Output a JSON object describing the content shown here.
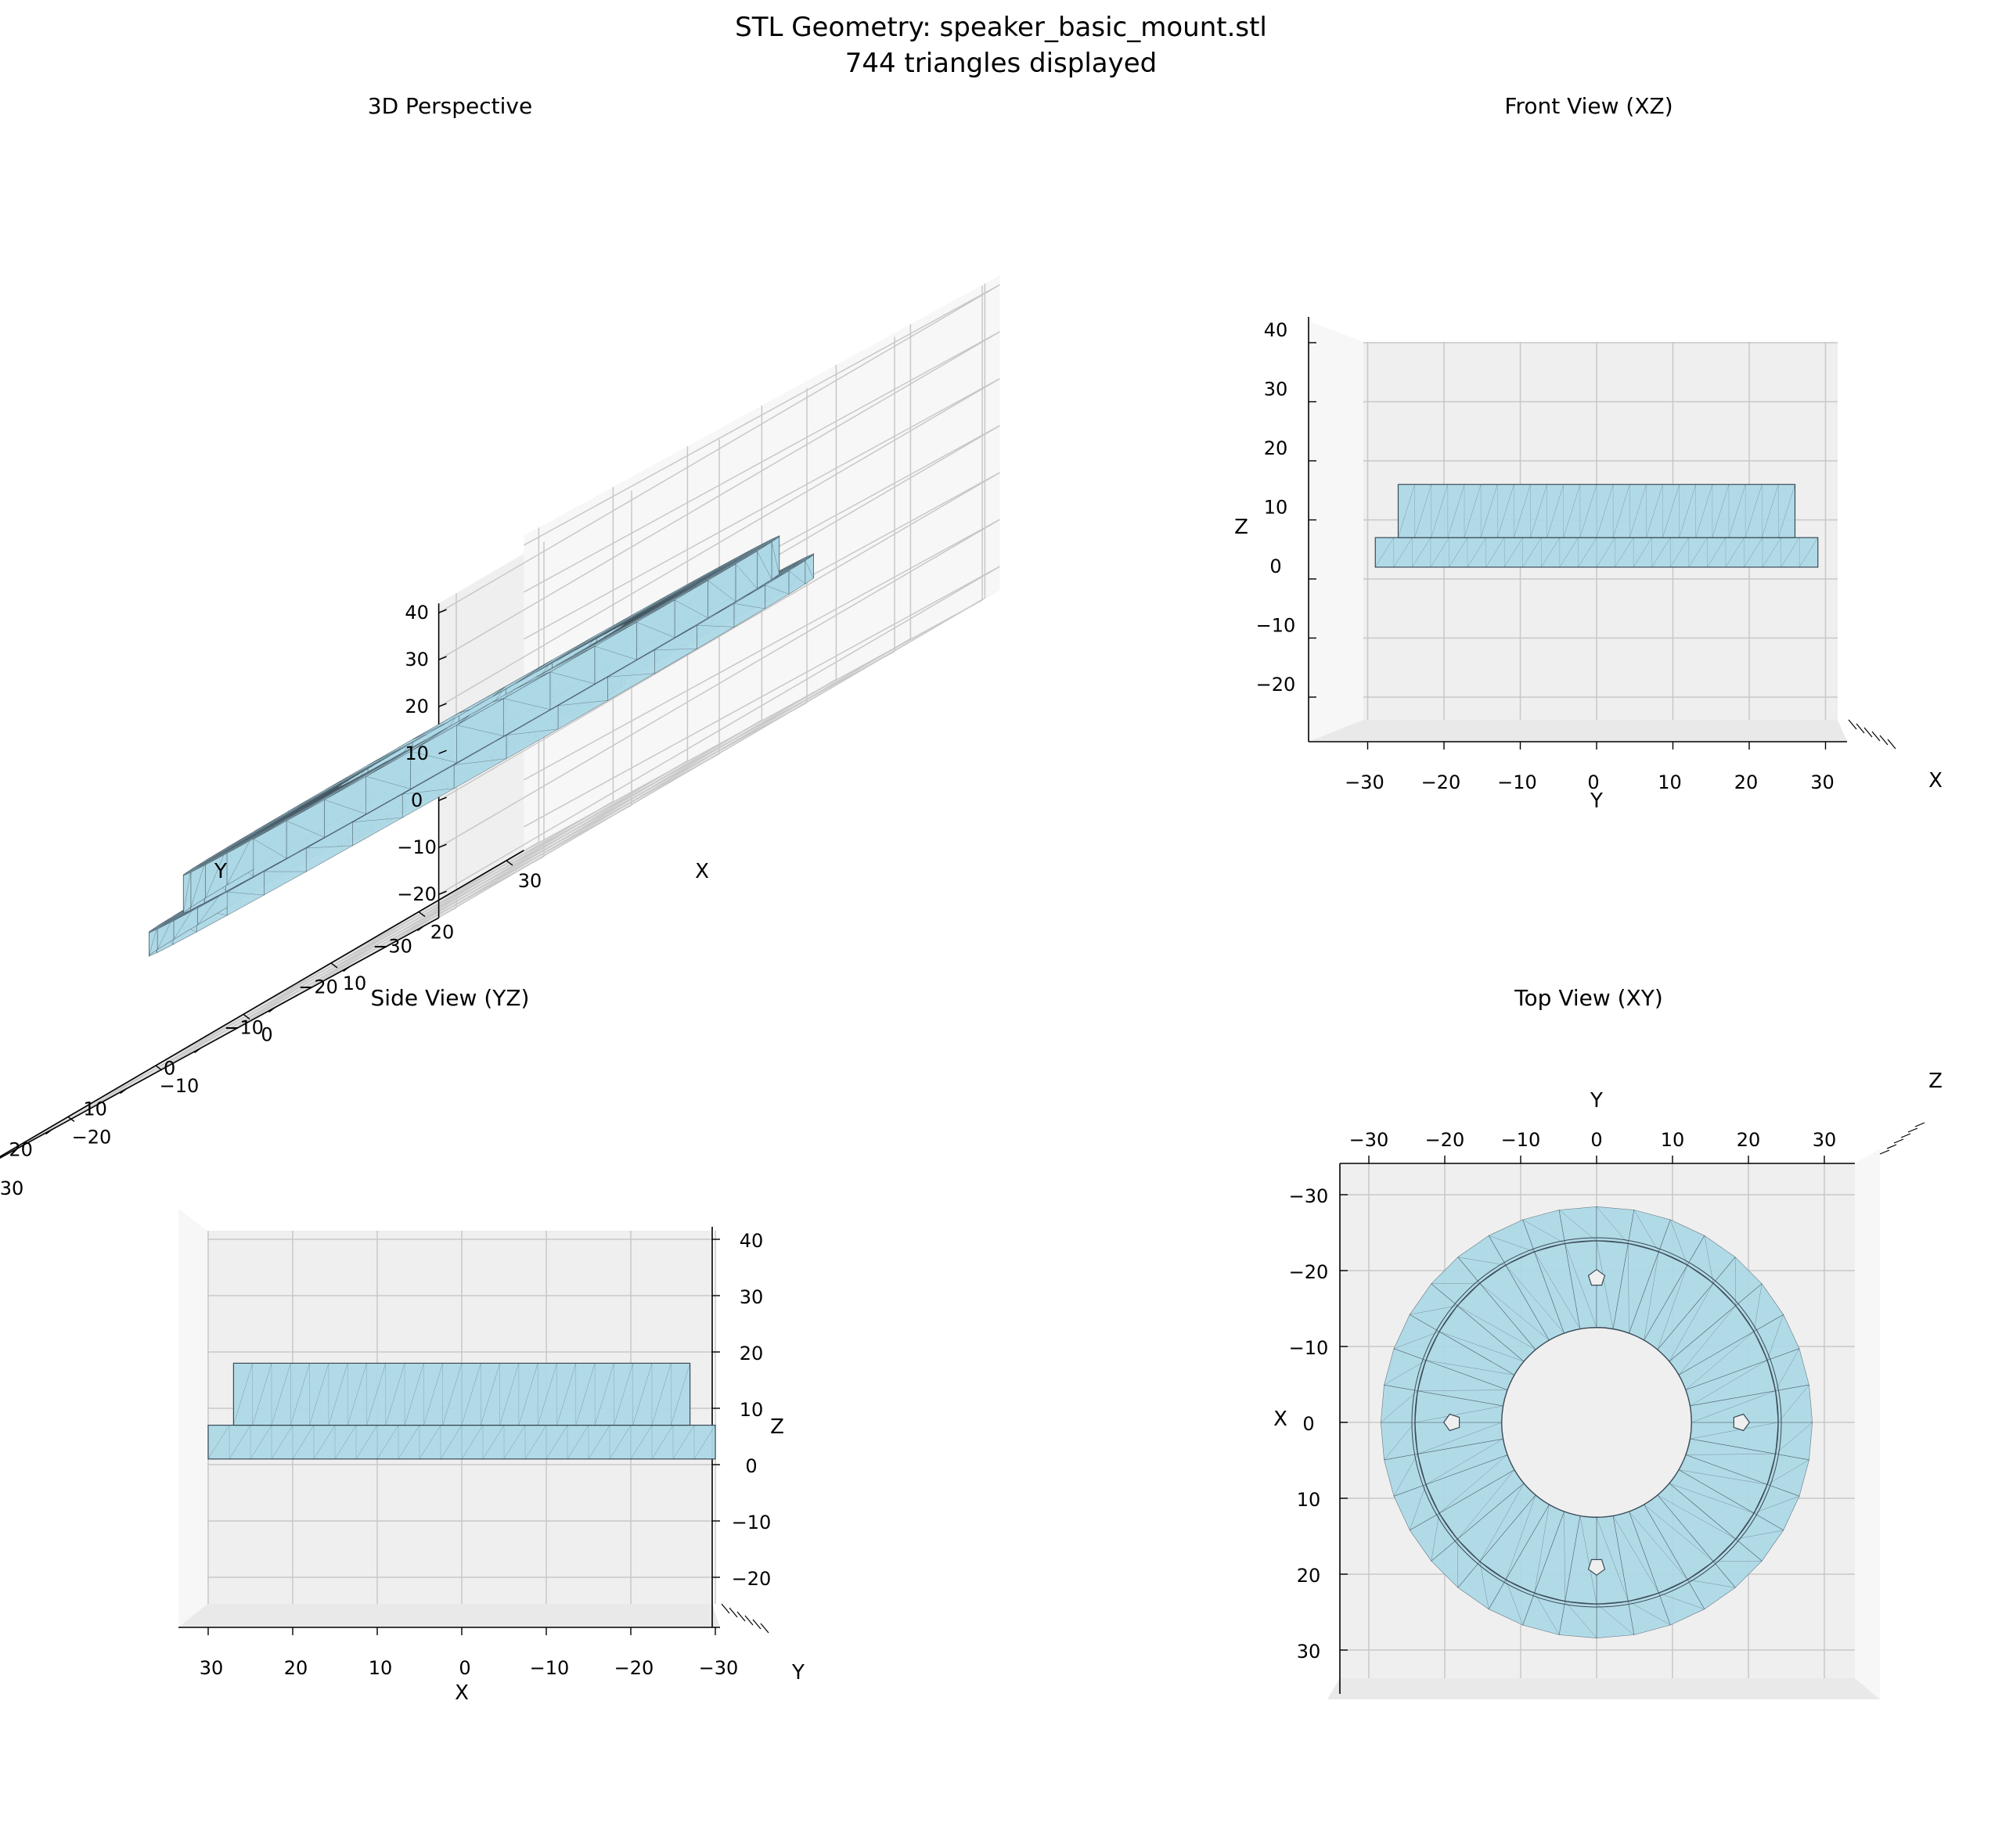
{
  "figure": {
    "title_line1": "STL Geometry: speaker_basic_mount.stl",
    "title_line2": "744 triangles displayed"
  },
  "colors": {
    "mesh_fill": "#add8e6",
    "mesh_edge": "#3a4a55",
    "pane_light": "#f7f7f7",
    "pane_mid": "#efefef",
    "pane_dark": "#e9e9e9",
    "grid": "#c8c8c8"
  },
  "views": {
    "perspective": {
      "title": "3D Perspective",
      "x_label": "X",
      "y_label": "Y",
      "x_ticks": [
        "−30",
        "−20",
        "−10",
        "0",
        "10",
        "20",
        "30"
      ],
      "y_ticks": [
        "−30",
        "−20",
        "−10",
        "0",
        "10",
        "20",
        "30"
      ],
      "z_ticks": [
        "40",
        "30",
        "20",
        "10",
        "0",
        "−10",
        "−20"
      ]
    },
    "front": {
      "title": "Front View (XZ)",
      "h_label": "Y",
      "v_label": "Z",
      "depth_label": "X",
      "h_ticks": [
        "−30",
        "−20",
        "−10",
        "0",
        "10",
        "20",
        "30"
      ],
      "v_ticks": [
        "40",
        "30",
        "20",
        "10",
        "0",
        "−10",
        "−20"
      ]
    },
    "side": {
      "title": "Side View (YZ)",
      "h_label": "X",
      "v_label": "Z",
      "depth_label": "Y",
      "h_ticks": [
        "30",
        "20",
        "10",
        "0",
        "−10",
        "−20",
        "−30"
      ],
      "v_ticks": [
        "40",
        "30",
        "20",
        "10",
        "0",
        "−10",
        "−20"
      ]
    },
    "top": {
      "title": "Top View (XY)",
      "h_label": "Y",
      "v_label": "X",
      "depth_label": "Z",
      "h_ticks": [
        "−30",
        "−20",
        "−10",
        "0",
        "10",
        "20",
        "30"
      ],
      "v_ticks": [
        "−30",
        "−20",
        "−10",
        "0",
        "10",
        "20",
        "30"
      ]
    }
  },
  "geometry": {
    "outer_radius": 29,
    "inner_radius": 12.5,
    "boss_radius": 26,
    "flange_z": [
      0,
      5
    ],
    "boss_z": [
      5,
      13
    ],
    "mount_holes": 4
  }
}
